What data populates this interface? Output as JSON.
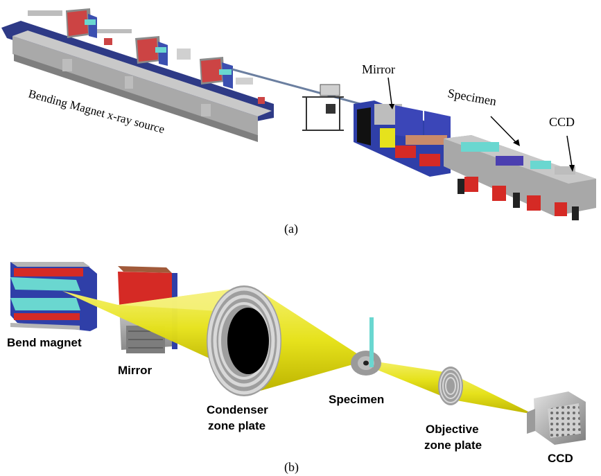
{
  "panel_a": {
    "caption": "(a)",
    "labels": {
      "source": "Bending Magnet x-ray source",
      "mirror": "Mirror",
      "specimen": "Specimen",
      "ccd": "CCD"
    }
  },
  "panel_b": {
    "caption": "(b)",
    "labels": {
      "bend_magnet": "Bend magnet",
      "mirror": "Mirror",
      "condenser_line1": "Condenser",
      "condenser_line2": "zone plate",
      "specimen": "Specimen",
      "objective_line1": "Objective",
      "objective_line2": "zone plate",
      "ccd": "CCD"
    }
  },
  "colors": {
    "beam": "#e6e21c",
    "beam_edge": "#b7b000",
    "zone_plate": "#c8c8c8",
    "magnet_blue": "#2f3fa8",
    "magnet_red": "#d52a25",
    "cyan": "#6ad7d0",
    "platform": "#9a9a9a"
  }
}
